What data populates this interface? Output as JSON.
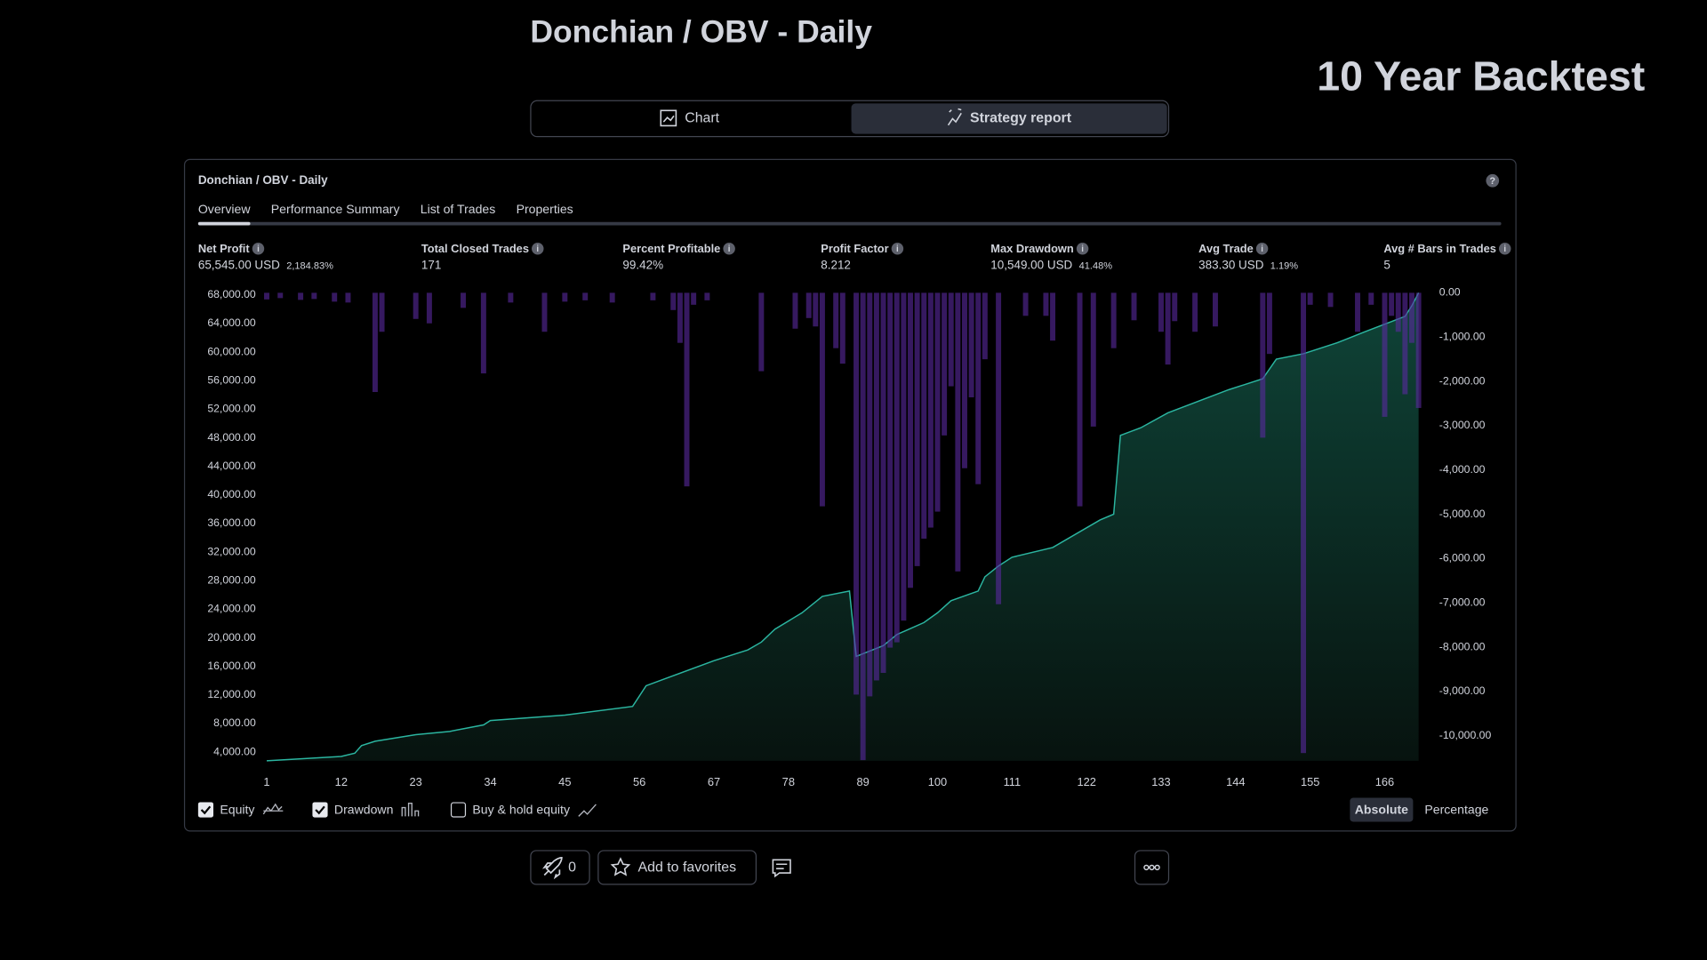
{
  "header": {
    "title": "Donchian / OBV - Daily",
    "badge": "10 Year Backtest"
  },
  "view_tabs": [
    {
      "label": "Chart",
      "selected": false
    },
    {
      "label": "Strategy report",
      "selected": true
    }
  ],
  "report": {
    "title": "Donchian / OBV - Daily",
    "tabs": [
      "Overview",
      "Performance Summary",
      "List of Trades",
      "Properties"
    ],
    "active_tab": 0,
    "metrics": [
      {
        "label": "Net Profit",
        "value": "65,545.00 USD",
        "secondary": "2,184.83%",
        "tone": "positive"
      },
      {
        "label": "Total Closed Trades",
        "value": "171",
        "tone": "neutral"
      },
      {
        "label": "Percent Profitable",
        "value": "99.42%",
        "tone": "positive"
      },
      {
        "label": "Profit Factor",
        "value": "8.212",
        "tone": "positive"
      },
      {
        "label": "Max Drawdown",
        "value": "10,549.00 USD",
        "secondary": "41.48%",
        "tone": "negative"
      },
      {
        "label": "Avg Trade",
        "value": "383.30 USD",
        "secondary": "1.19%",
        "tone": "positive"
      },
      {
        "label": "Avg # Bars in Trades",
        "value": "5",
        "tone": "neutral"
      }
    ],
    "toggles": [
      {
        "label": "Equity",
        "checked": true
      },
      {
        "label": "Drawdown",
        "checked": true
      },
      {
        "label": "Buy & hold equity",
        "checked": false
      }
    ],
    "scale_modes": [
      "Absolute",
      "Percentage"
    ],
    "active_scale": 0
  },
  "chart_data": {
    "type": "equity-drawdown",
    "xlim": [
      1,
      172
    ],
    "xticks": [
      1,
      12,
      23,
      34,
      45,
      56,
      67,
      78,
      89,
      100,
      111,
      122,
      133,
      144,
      155,
      166
    ],
    "ylim": [
      2780,
      68300
    ],
    "yticks": [
      {
        "value": 4000,
        "label": "4,000.00"
      },
      {
        "value": 8000,
        "label": "8,000.00"
      },
      {
        "value": 12000,
        "label": "12,000.00"
      },
      {
        "value": 16000,
        "label": "16,000.00"
      },
      {
        "value": 20000,
        "label": "20,000.00"
      },
      {
        "value": 24000,
        "label": "24,000.00"
      },
      {
        "value": 28000,
        "label": "28,000.00"
      },
      {
        "value": 32000,
        "label": "32,000.00"
      },
      {
        "value": 36000,
        "label": "36,000.00"
      },
      {
        "value": 40000,
        "label": "40,000.00"
      },
      {
        "value": 44000,
        "label": "44,000.00"
      },
      {
        "value": 48000,
        "label": "48,000.00"
      },
      {
        "value": 52000,
        "label": "52,000.00"
      },
      {
        "value": 56000,
        "label": "56,000.00"
      },
      {
        "value": 60000,
        "label": "60,000.00"
      },
      {
        "value": 64000,
        "label": "64,000.00"
      },
      {
        "value": 68000,
        "label": "68,000.00"
      }
    ],
    "y2lim": [
      -10565,
      0
    ],
    "y2ticks": [
      {
        "value": 0,
        "label": "0.00"
      },
      {
        "value": -1000,
        "label": "-1,000.00"
      },
      {
        "value": -2000,
        "label": "-2,000.00"
      },
      {
        "value": -3000,
        "label": "-3,000.00"
      },
      {
        "value": -4000,
        "label": "-4,000.00"
      },
      {
        "value": -5000,
        "label": "-5,000.00"
      },
      {
        "value": -6000,
        "label": "-6,000.00"
      },
      {
        "value": -7000,
        "label": "-7,000.00"
      },
      {
        "value": -8000,
        "label": "-8,000.00"
      },
      {
        "value": -9000,
        "label": "-9,000.00"
      },
      {
        "value": -10000,
        "label": "-10,000.00"
      }
    ],
    "series": [
      {
        "type": "area",
        "color": "#2bb5a0",
        "x": [
          1,
          12,
          14,
          15,
          17,
          23,
          28,
          33,
          34,
          45,
          55,
          57,
          67,
          72,
          74,
          76,
          80,
          83,
          87,
          88,
          92,
          94,
          98,
          100,
          102,
          106,
          107,
          109,
          111,
          117,
          124,
          126,
          127,
          130,
          134,
          143,
          148,
          150,
          154,
          159,
          163,
          169,
          170,
          171
        ],
        "values": [
          2780,
          3390,
          3850,
          4920,
          5530,
          6440,
          6900,
          7810,
          8420,
          9180,
          10400,
          13300,
          16800,
          18300,
          19400,
          21200,
          23500,
          25800,
          26550,
          17400,
          18900,
          20450,
          22130,
          23500,
          25200,
          26550,
          28530,
          30060,
          31280,
          32650,
          36500,
          37300,
          48340,
          49400,
          51500,
          54740,
          56270,
          59000,
          59770,
          61300,
          62820,
          65000,
          66500,
          68300
        ]
      },
      {
        "type": "bar",
        "axis": "y2",
        "color": "#5a2aa0",
        "x": [
          1,
          3,
          6,
          8,
          11,
          13,
          17,
          18,
          23,
          25,
          30,
          33,
          37,
          42,
          45,
          48,
          52,
          58,
          61,
          62,
          63,
          64,
          66,
          74,
          79,
          81,
          82,
          83,
          85,
          86,
          88,
          89,
          90,
          91,
          92,
          93,
          94,
          95,
          96,
          97,
          98,
          99,
          100,
          101,
          102,
          103,
          104,
          105,
          106,
          107,
          109,
          113,
          116,
          117,
          121,
          123,
          126,
          129,
          133,
          134,
          135,
          138,
          141,
          148,
          149,
          154,
          155,
          158,
          162,
          164,
          166,
          167,
          168,
          169,
          170,
          171
        ],
        "values": [
          -150,
          -120,
          -160,
          -140,
          -200,
          -220,
          -2240,
          -880,
          -590,
          -690,
          -340,
          -1820,
          -220,
          -880,
          -200,
          -170,
          -220,
          -170,
          -390,
          -1130,
          -4370,
          -270,
          -170,
          -1770,
          -810,
          -570,
          -760,
          -4820,
          -1250,
          -1600,
          -9070,
          -10549,
          -9110,
          -8750,
          -8580,
          -8010,
          -7890,
          -7400,
          -6660,
          -6170,
          -5550,
          -5300,
          -4940,
          -3220,
          -2110,
          -6290,
          -3960,
          -2360,
          -4320,
          -1500,
          -7030,
          -520,
          -520,
          -1080,
          -4820,
          -3020,
          -1250,
          -620,
          -880,
          -1620,
          -640,
          -880,
          -760,
          -3270,
          -1380,
          -10390,
          -270,
          -320,
          -880,
          -270,
          -2800,
          -520,
          -880,
          -2290,
          -1130,
          -2600
        ]
      }
    ]
  },
  "footer": {
    "boosts": 0,
    "favorite": "Add to favorites"
  }
}
